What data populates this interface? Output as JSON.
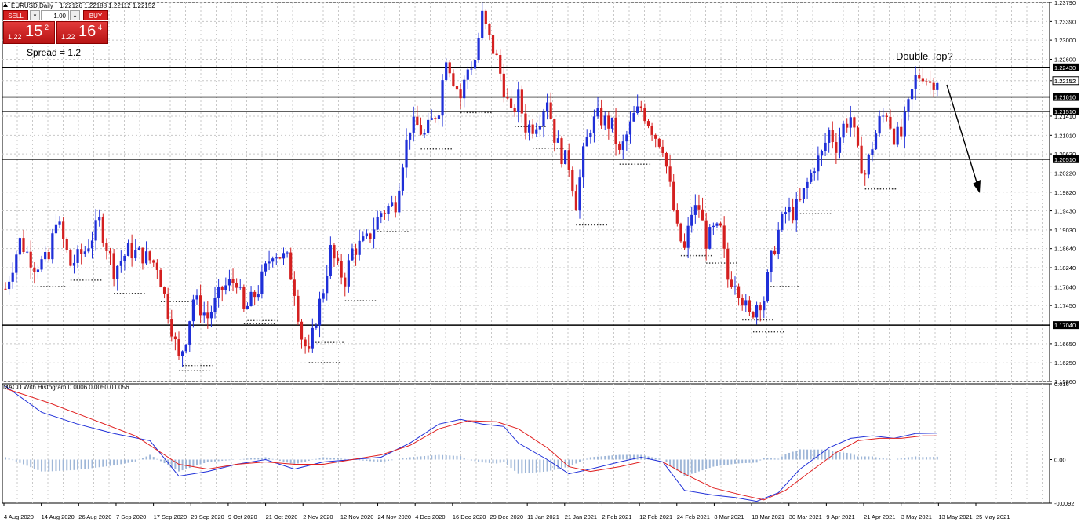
{
  "window": {
    "symbol_title": "EURUSD,Daily",
    "ohlc": "1.22126 1.22188 1.22112 1.22152",
    "macd_title": "MACD With Histogram 0.0006 0.0050 0.0056"
  },
  "trade_panel": {
    "sell_label": "SELL",
    "buy_label": "BUY",
    "lot": "1.00",
    "sell_price": {
      "prefix": "1.22",
      "big": "15",
      "sup": "2"
    },
    "buy_price": {
      "prefix": "1.22",
      "big": "16",
      "sup": "4"
    },
    "spread": "Spread = 1.2"
  },
  "chart_data": {
    "type": "candlestick",
    "title": "EURUSD,Daily",
    "annotation": "Double Top?",
    "price_axis": {
      "ylim": [
        1.1586,
        1.2379
      ],
      "ticks": [
        "1.23790",
        "1.23390",
        "1.23000",
        "1.22600",
        "1.22152",
        "1.21410",
        "1.21010",
        "1.20620",
        "1.20220",
        "1.19820",
        "1.19430",
        "1.19030",
        "1.18640",
        "1.18240",
        "1.17840",
        "1.17450",
        "1.16650",
        "1.16250",
        "1.15860"
      ]
    },
    "horizontal_levels": [
      {
        "label": "1.22430",
        "value": 1.2243
      },
      {
        "label": "1.21810",
        "value": 1.2181
      },
      {
        "label": "1.21510",
        "value": 1.2151
      },
      {
        "label": "1.20510",
        "value": 1.2051
      },
      {
        "label": "1.17040",
        "value": 1.1704
      }
    ],
    "current_price": {
      "label": "1.22152",
      "value": 1.22152
    },
    "dates": [
      "4 Aug 2020",
      "14 Aug 2020",
      "26 Aug 2020",
      "7 Sep 2020",
      "17 Sep 2020",
      "29 Sep 2020",
      "9 Oct 2020",
      "21 Oct 2020",
      "2 Nov 2020",
      "12 Nov 2020",
      "24 Nov 2020",
      "4 Dec 2020",
      "16 Dec 2020",
      "29 Dec 2020",
      "11 Jan 2021",
      "21 Jan 2021",
      "2 Feb 2021",
      "12 Feb 2021",
      "24 Feb 2021",
      "8 Mar 2021",
      "18 Mar 2021",
      "30 Mar 2021",
      "9 Apr 2021",
      "21 Apr 2021",
      "3 May 2021",
      "13 May 2021",
      "25 May 2021"
    ],
    "close_path": [
      [
        0,
        1.178
      ],
      [
        4,
        1.188
      ],
      [
        8,
        1.183
      ],
      [
        12,
        1.184
      ],
      [
        14,
        1.193
      ],
      [
        18,
        1.183
      ],
      [
        22,
        1.186
      ],
      [
        26,
        1.192
      ],
      [
        30,
        1.182
      ],
      [
        34,
        1.186
      ],
      [
        38,
        1.185
      ],
      [
        42,
        1.183
      ],
      [
        46,
        1.17
      ],
      [
        48,
        1.163
      ],
      [
        50,
        1.168
      ],
      [
        52,
        1.176
      ],
      [
        56,
        1.172
      ],
      [
        60,
        1.178
      ],
      [
        64,
        1.18
      ],
      [
        66,
        1.173
      ],
      [
        70,
        1.178
      ],
      [
        74,
        1.186
      ],
      [
        78,
        1.184
      ],
      [
        80,
        1.178
      ],
      [
        82,
        1.168
      ],
      [
        84,
        1.164
      ],
      [
        86,
        1.172
      ],
      [
        88,
        1.178
      ],
      [
        90,
        1.186
      ],
      [
        92,
        1.182
      ],
      [
        94,
        1.18
      ],
      [
        96,
        1.186
      ],
      [
        100,
        1.188
      ],
      [
        104,
        1.194
      ],
      [
        108,
        1.196
      ],
      [
        110,
        1.205
      ],
      [
        112,
        1.212
      ],
      [
        114,
        1.212
      ],
      [
        116,
        1.21
      ],
      [
        120,
        1.216
      ],
      [
        122,
        1.227
      ],
      [
        124,
        1.222
      ],
      [
        126,
        1.218
      ],
      [
        128,
        1.224
      ],
      [
        130,
        1.226
      ],
      [
        132,
        1.235
      ],
      [
        134,
        1.23
      ],
      [
        136,
        1.226
      ],
      [
        138,
        1.22
      ],
      [
        140,
        1.214
      ],
      [
        142,
        1.218
      ],
      [
        144,
        1.212
      ],
      [
        146,
        1.212
      ],
      [
        148,
        1.214
      ],
      [
        150,
        1.218
      ],
      [
        152,
        1.21
      ],
      [
        154,
        1.206
      ],
      [
        156,
        1.204
      ],
      [
        158,
        1.196
      ],
      [
        160,
        1.206
      ],
      [
        162,
        1.212
      ],
      [
        164,
        1.214
      ],
      [
        168,
        1.212
      ],
      [
        170,
        1.206
      ],
      [
        172,
        1.21
      ],
      [
        174,
        1.214
      ],
      [
        176,
        1.216
      ],
      [
        178,
        1.213
      ],
      [
        180,
        1.21
      ],
      [
        182,
        1.208
      ],
      [
        184,
        1.199
      ],
      [
        186,
        1.19
      ],
      [
        188,
        1.186
      ],
      [
        190,
        1.194
      ],
      [
        192,
        1.195
      ],
      [
        194,
        1.188
      ],
      [
        196,
        1.19
      ],
      [
        198,
        1.19
      ],
      [
        200,
        1.18
      ],
      [
        202,
        1.18
      ],
      [
        204,
        1.176
      ],
      [
        206,
        1.172
      ],
      [
        208,
        1.175
      ],
      [
        210,
        1.176
      ],
      [
        212,
        1.184
      ],
      [
        214,
        1.19
      ],
      [
        216,
        1.194
      ],
      [
        218,
        1.194
      ],
      [
        220,
        1.196
      ],
      [
        222,
        1.2
      ],
      [
        224,
        1.204
      ],
      [
        226,
        1.206
      ],
      [
        228,
        1.211
      ],
      [
        230,
        1.208
      ],
      [
        232,
        1.212
      ],
      [
        234,
        1.214
      ],
      [
        236,
        1.206
      ],
      [
        238,
        1.202
      ],
      [
        240,
        1.208
      ],
      [
        242,
        1.213
      ],
      [
        244,
        1.215
      ],
      [
        246,
        1.21
      ],
      [
        248,
        1.21
      ],
      [
        250,
        1.216
      ],
      [
        252,
        1.222
      ],
      [
        254,
        1.223
      ],
      [
        256,
        1.221
      ],
      [
        258,
        1.222
      ]
    ],
    "macd": {
      "title": "MACD With Histogram 0.0006 0.0050 0.0056",
      "ylim": [
        -0.0092,
        0.016
      ],
      "ticks": [
        "0.016",
        "0.00",
        "-0.0092"
      ],
      "series": [
        {
          "name": "",
          "color": "#1f2fd8",
          "points": [
            [
              0,
              0.0155
            ],
            [
              10,
              0.01
            ],
            [
              20,
              0.0075
            ],
            [
              30,
              0.0055
            ],
            [
              40,
              0.004
            ],
            [
              48,
              -0.0035
            ],
            [
              56,
              -0.0025
            ],
            [
              64,
              -0.001
            ],
            [
              72,
              0.0
            ],
            [
              80,
              -0.002
            ],
            [
              88,
              -0.0005
            ],
            [
              96,
              0.0
            ],
            [
              104,
              0.0005
            ],
            [
              112,
              0.0035
            ],
            [
              120,
              0.0075
            ],
            [
              126,
              0.0085
            ],
            [
              132,
              0.0075
            ],
            [
              138,
              0.007
            ],
            [
              142,
              0.0035
            ],
            [
              150,
              0.0
            ],
            [
              156,
              -0.003
            ],
            [
              162,
              -0.002
            ],
            [
              170,
              -0.0005
            ],
            [
              176,
              0.0005
            ],
            [
              182,
              -0.0005
            ],
            [
              188,
              -0.0065
            ],
            [
              196,
              -0.0075
            ],
            [
              202,
              -0.008
            ],
            [
              208,
              -0.0088
            ],
            [
              214,
              -0.007
            ],
            [
              220,
              -0.002
            ],
            [
              228,
              0.0025
            ],
            [
              234,
              0.0045
            ],
            [
              240,
              0.005
            ],
            [
              246,
              0.0045
            ],
            [
              252,
              0.0055
            ],
            [
              258,
              0.0056
            ]
          ]
        },
        {
          "name": "",
          "color": "#e02020",
          "points": [
            [
              0,
              0.015
            ],
            [
              12,
              0.012
            ],
            [
              24,
              0.0085
            ],
            [
              36,
              0.005
            ],
            [
              48,
              -0.001
            ],
            [
              56,
              -0.002
            ],
            [
              64,
              -0.001
            ],
            [
              72,
              -0.0005
            ],
            [
              80,
              -0.001
            ],
            [
              88,
              -0.001
            ],
            [
              96,
              0.0
            ],
            [
              104,
              0.001
            ],
            [
              112,
              0.003
            ],
            [
              120,
              0.0065
            ],
            [
              128,
              0.0082
            ],
            [
              136,
              0.008
            ],
            [
              142,
              0.0065
            ],
            [
              150,
              0.0025
            ],
            [
              156,
              -0.0015
            ],
            [
              162,
              -0.0025
            ],
            [
              170,
              -0.0015
            ],
            [
              176,
              -0.0005
            ],
            [
              182,
              -0.0005
            ],
            [
              188,
              -0.003
            ],
            [
              196,
              -0.006
            ],
            [
              204,
              -0.0075
            ],
            [
              210,
              -0.0085
            ],
            [
              216,
              -0.0065
            ],
            [
              222,
              -0.003
            ],
            [
              230,
              0.0015
            ],
            [
              236,
              0.004
            ],
            [
              242,
              0.0045
            ],
            [
              248,
              0.0045
            ],
            [
              254,
              0.005
            ],
            [
              258,
              0.005
            ]
          ]
        }
      ],
      "histogram_color": "#9fb7d8"
    }
  }
}
